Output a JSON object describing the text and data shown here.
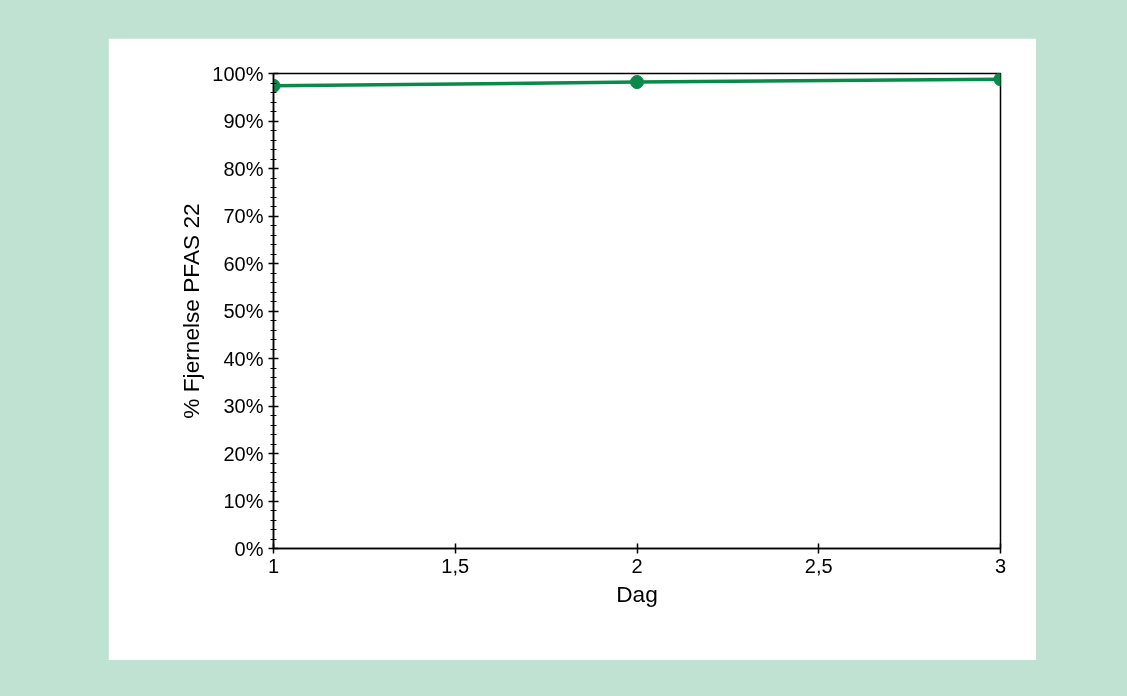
{
  "chart_data": {
    "type": "line",
    "xlabel": "Dag",
    "ylabel": "% Fjernelse PFAS 22",
    "x": [
      1,
      2,
      3
    ],
    "series": [
      {
        "color": "#0a8a4a",
        "values": [
          97.4,
          98.2,
          98.8
        ]
      }
    ],
    "xlim": [
      1,
      3
    ],
    "xticks": [
      1,
      {
        "value": 1.5,
        "label": "1,5"
      },
      2,
      {
        "value": 2.5,
        "label": "2,5"
      },
      3
    ],
    "ylim": [
      0,
      100
    ],
    "yticks": [
      {
        "value": 0,
        "label": "0%"
      },
      {
        "value": 10,
        "label": "10%"
      },
      {
        "value": 20,
        "label": "20%"
      },
      {
        "value": 30,
        "label": "30%"
      },
      {
        "value": 40,
        "label": "40%"
      },
      {
        "value": 50,
        "label": "50%"
      },
      {
        "value": 60,
        "label": "60%"
      },
      {
        "value": 70,
        "label": "70%"
      },
      {
        "value": 80,
        "label": "80%"
      },
      {
        "value": 90,
        "label": "90%"
      },
      {
        "value": 100,
        "label": "100%"
      }
    ],
    "marker": "circle",
    "line_style": "solid"
  }
}
